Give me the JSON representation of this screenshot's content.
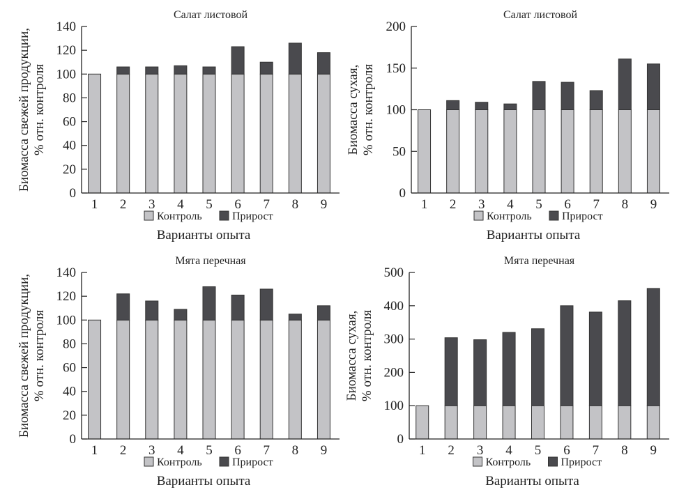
{
  "colors": {
    "control": "#c3c3c6",
    "growth": "#4a4a4e",
    "axis": "#222222"
  },
  "legend": {
    "control": "Контроль",
    "growth": "Прирост"
  },
  "chart_data": [
    {
      "type": "bar",
      "stacked": true,
      "title": "Салат листовой",
      "xlabel": "Варианты опыта",
      "ylabel": [
        "Биомасса свежей продукции,",
        "% отн. контроля"
      ],
      "categories": [
        "1",
        "2",
        "3",
        "4",
        "5",
        "6",
        "7",
        "8",
        "9"
      ],
      "ylim": [
        0,
        140
      ],
      "yticks": [
        0,
        20,
        40,
        60,
        80,
        100,
        120,
        140
      ],
      "series": [
        {
          "name": "Контроль",
          "values": [
            100,
            100,
            100,
            100,
            100,
            100,
            100,
            100,
            100
          ]
        },
        {
          "name": "Прирост",
          "values": [
            0,
            6,
            6,
            7,
            6,
            23,
            10,
            26,
            18
          ]
        }
      ]
    },
    {
      "type": "bar",
      "stacked": true,
      "title": "Салат листовой",
      "xlabel": "Варианты опыта",
      "ylabel": [
        "Биомасса сухая,",
        "% отн. контроля"
      ],
      "categories": [
        "1",
        "2",
        "3",
        "4",
        "5",
        "6",
        "7",
        "8",
        "9"
      ],
      "ylim": [
        0,
        200
      ],
      "yticks": [
        0,
        50,
        100,
        150,
        200
      ],
      "series": [
        {
          "name": "Контроль",
          "values": [
            100,
            100,
            100,
            100,
            100,
            100,
            100,
            100,
            100
          ]
        },
        {
          "name": "Прирост",
          "values": [
            0,
            11,
            9,
            7,
            34,
            33,
            23,
            61,
            55
          ]
        }
      ]
    },
    {
      "type": "bar",
      "stacked": true,
      "title": "Мята перечная",
      "xlabel": "Варианты опыта",
      "ylabel": [
        "Биомасса свежей продукции,",
        "% отн. контроля"
      ],
      "categories": [
        "1",
        "2",
        "3",
        "4",
        "5",
        "6",
        "7",
        "8",
        "9"
      ],
      "ylim": [
        0,
        140
      ],
      "yticks": [
        0,
        20,
        40,
        60,
        80,
        100,
        120,
        140
      ],
      "series": [
        {
          "name": "Контроль",
          "values": [
            100,
            100,
            100,
            100,
            100,
            100,
            100,
            100,
            100
          ]
        },
        {
          "name": "Прирост",
          "values": [
            0,
            22,
            16,
            9,
            28,
            21,
            26,
            5,
            12
          ]
        }
      ]
    },
    {
      "type": "bar",
      "stacked": true,
      "title": "Мята перечная",
      "xlabel": "Варианты опыта",
      "ylabel": [
        "Биомасса сухая,",
        "% отн. контроля"
      ],
      "categories": [
        "1",
        "2",
        "3",
        "4",
        "5",
        "6",
        "7",
        "8",
        "9"
      ],
      "ylim": [
        0,
        500
      ],
      "yticks": [
        0,
        100,
        200,
        300,
        400,
        500
      ],
      "series": [
        {
          "name": "Контроль",
          "values": [
            100,
            100,
            100,
            100,
            100,
            100,
            100,
            100,
            100
          ]
        },
        {
          "name": "Прирост",
          "values": [
            0,
            204,
            198,
            220,
            231,
            300,
            281,
            315,
            352
          ]
        }
      ]
    }
  ]
}
